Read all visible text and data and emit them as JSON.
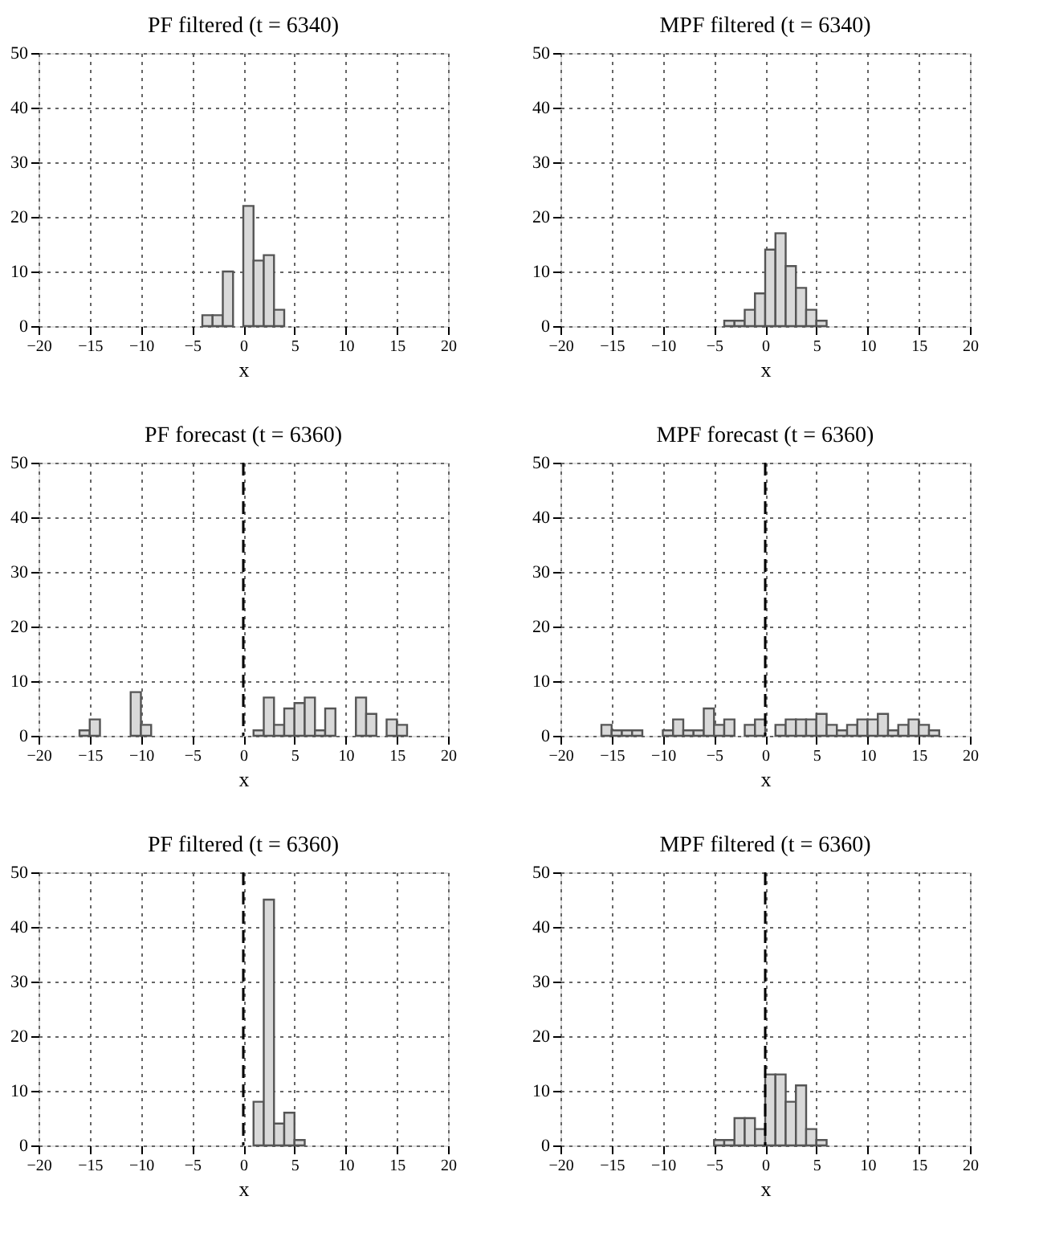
{
  "chart_data": [
    {
      "type": "histogram",
      "title": "PF  filtered (t = 6340)",
      "xlabel": "x",
      "bins": [
        -4,
        -3,
        -2,
        -1,
        0,
        1,
        2,
        3,
        4
      ],
      "values": [
        2,
        2,
        10,
        0,
        22,
        12,
        13,
        3
      ],
      "color": "#d9d9d9",
      "xlim": [
        -20,
        20
      ],
      "xticks": [
        -20,
        -15,
        -10,
        -5,
        0,
        5,
        10,
        15,
        20
      ],
      "ylim": [
        0,
        50
      ],
      "yticks": [
        0,
        10,
        20,
        30,
        40,
        50
      ],
      "grid": true
    },
    {
      "type": "histogram",
      "title": "MPF  filtered (t = 6340)",
      "xlabel": "x",
      "bins": [
        -4,
        -3,
        -2,
        -1,
        0,
        1,
        2,
        3,
        4,
        5,
        6
      ],
      "values": [
        1,
        1,
        3,
        6,
        14,
        17,
        11,
        7,
        3,
        1
      ],
      "color": "#d9d9d9",
      "xlim": [
        -20,
        20
      ],
      "xticks": [
        -20,
        -15,
        -10,
        -5,
        0,
        5,
        10,
        15,
        20
      ],
      "ylim": [
        0,
        50
      ],
      "yticks": [
        0,
        10,
        20,
        30,
        40,
        50
      ],
      "grid": true
    },
    {
      "type": "histogram",
      "title": "PF  forecast (t = 6360)",
      "xlabel": "x",
      "bins": [
        -16,
        -15,
        -14,
        -13,
        -12,
        -11,
        -10,
        -9,
        -8,
        -7,
        -6,
        -5,
        -4,
        -3,
        -2,
        -1,
        0,
        1,
        2,
        3,
        4,
        5,
        6,
        7,
        8,
        9,
        10,
        11,
        12,
        13,
        14,
        15,
        16
      ],
      "values": [
        1,
        3,
        0,
        0,
        0,
        8,
        2,
        0,
        0,
        0,
        0,
        0,
        0,
        0,
        0,
        0,
        0,
        1,
        7,
        2,
        5,
        6,
        7,
        1,
        5,
        0,
        0,
        7,
        4,
        0,
        3,
        2
      ],
      "color": "#d9d9d9",
      "xlim": [
        -20,
        20
      ],
      "xticks": [
        -20,
        -15,
        -10,
        -5,
        0,
        5,
        10,
        15,
        20
      ],
      "ylim": [
        0,
        50
      ],
      "yticks": [
        0,
        10,
        20,
        30,
        40,
        50
      ],
      "grid": true,
      "ref_lines": [
        {
          "axis": "x",
          "value": 0,
          "line_style": "dashed"
        }
      ]
    },
    {
      "type": "histogram",
      "title": "MPF  forecast (t = 6360)",
      "xlabel": "x",
      "bins": [
        -16,
        -15,
        -14,
        -13,
        -12,
        -11,
        -10,
        -9,
        -8,
        -7,
        -6,
        -5,
        -4,
        -3,
        -2,
        -1,
        0,
        1,
        2,
        3,
        4,
        5,
        6,
        7,
        8,
        9,
        10,
        11,
        12,
        13,
        14,
        15,
        16,
        17
      ],
      "values": [
        2,
        1,
        1,
        1,
        0,
        0,
        1,
        3,
        1,
        1,
        5,
        2,
        3,
        0,
        2,
        3,
        0,
        2,
        3,
        3,
        3,
        4,
        2,
        1,
        2,
        3,
        3,
        4,
        1,
        2,
        3,
        2,
        1
      ],
      "color": "#d9d9d9",
      "xlim": [
        -20,
        20
      ],
      "xticks": [
        -20,
        -15,
        -10,
        -5,
        0,
        5,
        10,
        15,
        20
      ],
      "ylim": [
        0,
        50
      ],
      "yticks": [
        0,
        10,
        20,
        30,
        40,
        50
      ],
      "grid": true,
      "ref_lines": [
        {
          "axis": "x",
          "value": 0,
          "line_style": "dashed"
        }
      ]
    },
    {
      "type": "histogram",
      "title": "PF  filtered (t = 6360)",
      "xlabel": "x",
      "bins": [
        1,
        2,
        3,
        4,
        5,
        6
      ],
      "values": [
        8,
        45,
        4,
        6,
        1
      ],
      "color": "#d9d9d9",
      "xlim": [
        -20,
        20
      ],
      "xticks": [
        -20,
        -15,
        -10,
        -5,
        0,
        5,
        10,
        15,
        20
      ],
      "ylim": [
        0,
        50
      ],
      "yticks": [
        0,
        10,
        20,
        30,
        40,
        50
      ],
      "grid": true,
      "ref_lines": [
        {
          "axis": "x",
          "value": 0,
          "line_style": "dashed"
        }
      ]
    },
    {
      "type": "histogram",
      "title": "MPF  filtered (t = 6360)",
      "xlabel": "x",
      "bins": [
        -5,
        -4,
        -3,
        -2,
        -1,
        0,
        1,
        2,
        3,
        4,
        5,
        6
      ],
      "values": [
        1,
        1,
        5,
        5,
        3,
        13,
        13,
        8,
        11,
        3,
        1
      ],
      "color": "#d9d9d9",
      "xlim": [
        -20,
        20
      ],
      "xticks": [
        -20,
        -15,
        -10,
        -5,
        0,
        5,
        10,
        15,
        20
      ],
      "ylim": [
        0,
        50
      ],
      "yticks": [
        0,
        10,
        20,
        30,
        40,
        50
      ],
      "grid": true,
      "ref_lines": [
        {
          "axis": "x",
          "value": 0,
          "line_style": "dashed"
        }
      ]
    }
  ]
}
